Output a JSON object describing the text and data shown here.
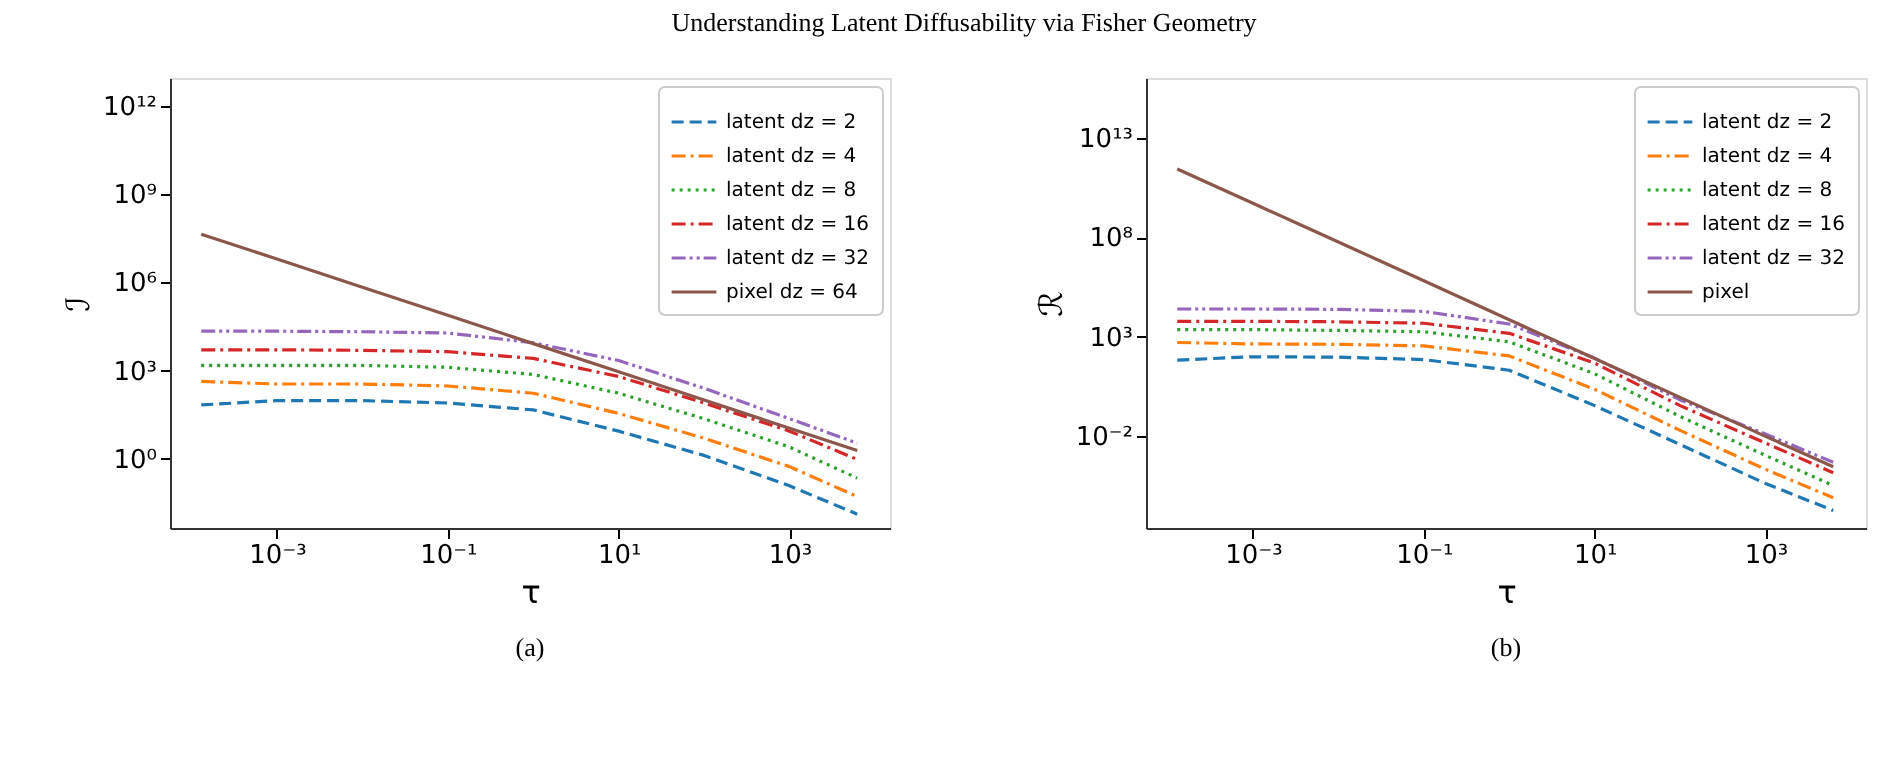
{
  "chart_data": [
    {
      "type": "line",
      "log": "xy",
      "grid": false,
      "legend": "top right",
      "marker": "none",
      "xlabel": "τ",
      "ylabel": "ℐ",
      "annotations": [
        "Understanding Latent Diffusability via Fisher Geometry",
        "(a)"
      ],
      "x": [
        0.00013,
        0.001,
        0.01,
        0.1,
        1,
        10,
        100,
        1000,
        6200
      ],
      "xlim": [
        5.6e-05,
        15000
      ],
      "xticks": [
        {
          "value": 0.001,
          "label": "10⁻³"
        },
        {
          "value": 0.1,
          "label": "10⁻¹"
        },
        {
          "value": 10,
          "label": "10¹"
        },
        {
          "value": 1000,
          "label": "10³"
        }
      ],
      "ylim": [
        0.0044,
        9100000000000.0
      ],
      "yticks": [
        {
          "value": 1,
          "label": "10⁰"
        },
        {
          "value": 1000,
          "label": "10³"
        },
        {
          "value": 1000000,
          "label": "10⁶"
        },
        {
          "value": 1000000000,
          "label": "10⁹"
        },
        {
          "value": 1000000000000,
          "label": "10¹²"
        }
      ],
      "series": [
        {
          "name": "latent dz = 2",
          "color": "#1f77b4",
          "line_style": "dashed",
          "values": [
            68,
            95,
            95,
            79,
            46,
            8.7,
            1.3,
            0.12,
            0.013
          ]
        },
        {
          "name": "latent dz = 4",
          "color": "#ff7f0e",
          "line_style": "dashdot",
          "values": [
            430,
            350,
            350,
            300,
            170,
            35,
            5,
            0.54,
            0.052
          ]
        },
        {
          "name": "latent dz = 8",
          "color": "#2ca02c",
          "line_style": "dotted",
          "values": [
            1500,
            1500,
            1500,
            1300,
            740,
            170,
            23,
            2.5,
            0.22
          ]
        },
        {
          "name": "latent dz = 16",
          "color": "#d62728",
          "line_style": "dashdot",
          "values": [
            5100,
            5100,
            4900,
            4400,
            2600,
            630,
            79,
            8.7,
            0.95
          ]
        },
        {
          "name": "latent dz = 32",
          "color": "#9467bd",
          "line_style": "dashdotdot",
          "values": [
            22000,
            22000,
            21000,
            19000,
            8900,
            2200,
            250,
            23,
            3.4
          ]
        },
        {
          "name": "pixel dz = 64",
          "color": "#8c564b",
          "line_style": "solid",
          "values": [
            44000000,
            6300000,
            690000,
            76000,
            8300,
            910,
            100,
            11,
            1.9
          ]
        }
      ]
    },
    {
      "type": "line",
      "log": "xy",
      "grid": false,
      "legend": "top right",
      "marker": "none",
      "xlabel": "τ",
      "ylabel": "ℛ",
      "annotations": [
        "(b)"
      ],
      "x": [
        0.00013,
        0.001,
        0.01,
        0.1,
        1,
        10,
        100,
        1000,
        6200
      ],
      "xlim": [
        5.6e-05,
        15000
      ],
      "xticks": [
        {
          "value": 0.001,
          "label": "10⁻³"
        },
        {
          "value": 0.1,
          "label": "10⁻¹"
        },
        {
          "value": 10,
          "label": "10¹"
        },
        {
          "value": 1000,
          "label": "10³"
        }
      ],
      "ylim": [
        2.5e-07,
        1e+16
      ],
      "yticks": [
        {
          "value": 0.01,
          "label": "10⁻²"
        },
        {
          "value": 1000,
          "label": "10³"
        },
        {
          "value": 100000000,
          "label": "10⁸"
        },
        {
          "value": 10000000000000,
          "label": "10¹³"
        }
      ],
      "series": [
        {
          "name": "latent dz = 2",
          "color": "#1f77b4",
          "line_style": "dashed",
          "values": [
            68,
            100,
            95,
            72,
            21,
            0.35,
            0.0039,
            4.3e-05,
            1.9e-06
          ]
        },
        {
          "name": "latent dz = 4",
          "color": "#ff7f0e",
          "line_style": "dashdot",
          "values": [
            520,
            440,
            420,
            350,
            110,
            2.3,
            0.02,
            0.00022,
            8.3e-06
          ]
        },
        {
          "name": "latent dz = 8",
          "color": "#2ca02c",
          "line_style": "dotted",
          "values": [
            2300,
            2300,
            2100,
            1800,
            560,
            14,
            0.1,
            0.0011,
            3.4e-05
          ]
        },
        {
          "name": "latent dz = 16",
          "color": "#d62728",
          "line_style": "dashdot",
          "values": [
            6000,
            6000,
            5700,
            4800,
            1500,
            48,
            0.35,
            0.0046,
            0.00015
          ]
        },
        {
          "name": "latent dz = 32",
          "color": "#9467bd",
          "line_style": "dashdotdot",
          "values": [
            25000,
            25000,
            24000,
            19000,
            4400,
            85,
            0.68,
            0.013,
            0.0005
          ]
        },
        {
          "name": "pixel",
          "color": "#8c564b",
          "line_style": "solid",
          "values": [
            270000000000,
            5100000000,
            58000000,
            650000,
            7200,
            81,
            0.91,
            0.01,
            0.0003
          ]
        }
      ]
    }
  ]
}
